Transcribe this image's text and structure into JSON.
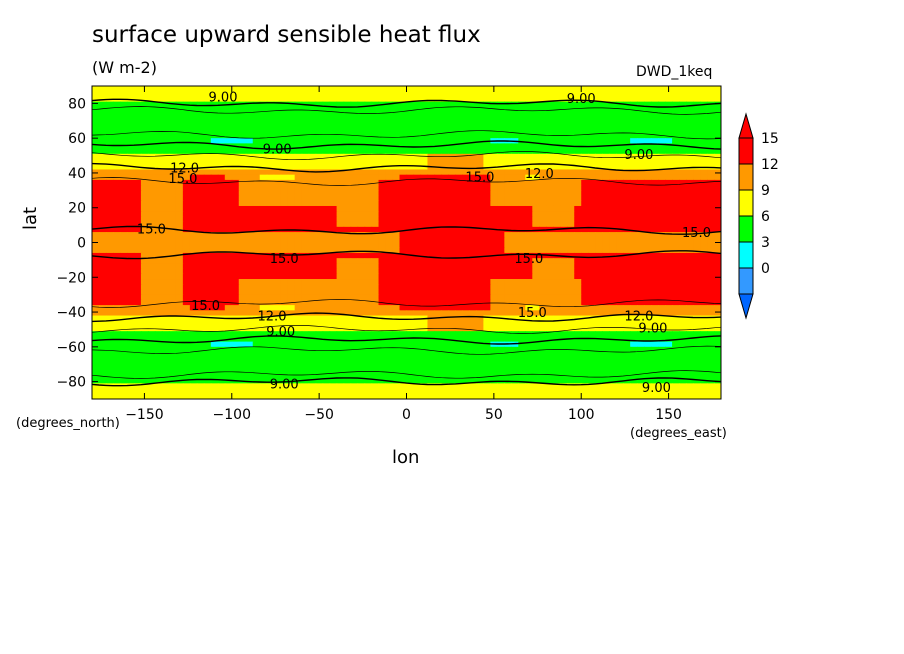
{
  "chart_data": {
    "type": "contour",
    "title": "surface upward sensible heat flux",
    "units": "(W m-2)",
    "dataset": "DWD_1keq",
    "xlabel": "lon",
    "ylabel": "lat",
    "x_units": "(degrees_east)",
    "y_units": "(degrees_north)",
    "xlim": [
      -180,
      180
    ],
    "ylim": [
      -90,
      90
    ],
    "x_ticks": [
      -150,
      -100,
      -50,
      0,
      50,
      100,
      150
    ],
    "y_ticks": [
      -80,
      -60,
      -40,
      -20,
      0,
      20,
      40,
      60,
      80
    ],
    "colorbar": {
      "levels": [
        0,
        3,
        6,
        9,
        12,
        15
      ],
      "colors": [
        "#3399ff",
        "#00ffff",
        "#00ff00",
        "#ffff00",
        "#ff9900",
        "#ff0000"
      ],
      "under_color": "#0066ff",
      "over_color": "#ff0000"
    },
    "contour_labels": [
      {
        "text": "9.00",
        "lon": -105,
        "lat": 84
      },
      {
        "text": "9.00",
        "lon": 100,
        "lat": 83
      },
      {
        "text": "9.00",
        "lon": -74,
        "lat": 54
      },
      {
        "text": "9.00",
        "lon": 133,
        "lat": 51
      },
      {
        "text": "12.0",
        "lon": -127,
        "lat": 43
      },
      {
        "text": "15.0",
        "lon": -128,
        "lat": 37
      },
      {
        "text": "15.0",
        "lon": 42,
        "lat": 38
      },
      {
        "text": "12.0",
        "lon": 76,
        "lat": 40
      },
      {
        "text": "15.0",
        "lon": -146,
        "lat": 8
      },
      {
        "text": "15.0",
        "lon": 166,
        "lat": 6
      },
      {
        "text": "15.0",
        "lon": -70,
        "lat": -9
      },
      {
        "text": "15.0",
        "lon": 70,
        "lat": -9
      },
      {
        "text": "15.0",
        "lon": -115,
        "lat": -36
      },
      {
        "text": "12.0",
        "lon": -77,
        "lat": -42
      },
      {
        "text": "15.0",
        "lon": 72,
        "lat": -40
      },
      {
        "text": "12.0",
        "lon": 133,
        "lat": -42
      },
      {
        "text": "9.00",
        "lon": -72,
        "lat": -51
      },
      {
        "text": "9.00",
        "lon": 141,
        "lat": -49
      },
      {
        "text": "9.00",
        "lon": -70,
        "lat": -81
      },
      {
        "text": "9.00",
        "lon": 143,
        "lat": -83
      }
    ]
  }
}
